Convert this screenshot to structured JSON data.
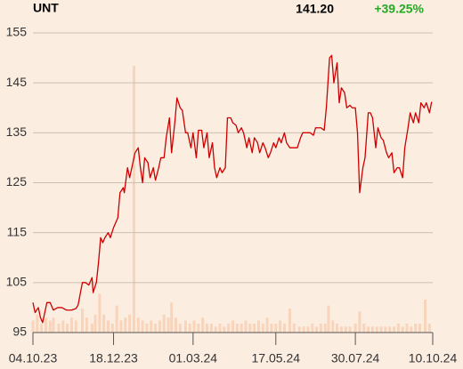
{
  "chart_data": {
    "type": "line",
    "title": "UNT",
    "last_price": "141.20",
    "change": "+39.25%",
    "xlim": [
      0,
      372
    ],
    "xticks": [
      {
        "value": 0,
        "label": "04.10.23"
      },
      {
        "value": 75,
        "label": "18.12.23"
      },
      {
        "value": 149,
        "label": "01.03.24"
      },
      {
        "value": 226,
        "label": "17.05.24"
      },
      {
        "value": 300,
        "label": "30.07.24"
      },
      {
        "value": 372,
        "label": "10.10.24"
      }
    ],
    "ylim": [
      95,
      155
    ],
    "yticks": [
      95,
      105,
      115,
      125,
      135,
      145,
      155
    ],
    "y2lim": [
      0,
      100
    ],
    "grid": true,
    "series": [
      {
        "color": "#cc0000",
        "x": [
          0,
          2,
          5,
          7,
          9,
          11,
          13,
          16,
          19,
          23,
          27,
          31,
          36,
          40,
          42,
          46,
          49,
          52,
          55,
          56,
          59,
          61,
          63,
          65,
          67,
          70,
          72,
          75,
          79,
          81,
          84,
          85,
          88,
          90,
          93,
          95,
          98,
          100,
          102,
          104,
          107,
          109,
          112,
          114,
          117,
          119,
          122,
          124,
          127,
          129,
          132,
          134,
          137,
          139,
          142,
          144,
          147,
          149,
          152,
          154,
          157,
          159,
          162,
          164,
          167,
          169,
          171,
          174,
          176,
          179,
          181,
          184,
          186,
          189,
          191,
          194,
          196,
          199,
          201,
          204,
          206,
          209,
          211,
          214,
          216,
          219,
          221,
          224,
          226,
          229,
          231,
          234,
          236,
          239,
          241,
          244,
          246,
          249,
          251,
          254,
          256,
          258,
          261,
          263,
          266,
          268,
          271,
          273,
          276,
          278,
          280,
          283,
          285,
          287,
          290,
          292,
          295,
          297,
          300,
          302,
          304,
          307,
          309,
          312,
          314,
          316,
          319,
          321,
          324,
          326,
          329,
          331,
          334,
          336,
          339,
          341,
          344,
          346,
          349,
          351,
          354,
          356,
          359,
          361,
          364,
          366,
          369,
          371
        ],
        "values": [
          101,
          99,
          100,
          98,
          97,
          99,
          101,
          101,
          99.5,
          100,
          100,
          99.5,
          99.5,
          99.8,
          100.5,
          105,
          105,
          104.5,
          106,
          103,
          105,
          109,
          114,
          113,
          114,
          115,
          114,
          116,
          118,
          123,
          124,
          123,
          128,
          126,
          129,
          131,
          132,
          128,
          125,
          130,
          129,
          126,
          128,
          125.5,
          128,
          130,
          130,
          134,
          138,
          131,
          137,
          142,
          140,
          139.5,
          135,
          135,
          132,
          135,
          130,
          135.5,
          135.5,
          132,
          135,
          130,
          133,
          128,
          126,
          128,
          127,
          128,
          138,
          138,
          137,
          136.5,
          135,
          136,
          135,
          132,
          134,
          131,
          134,
          133,
          131,
          133,
          132,
          130,
          131,
          133,
          132,
          134,
          133,
          135,
          133,
          132,
          132,
          132,
          132,
          134,
          135,
          135,
          135,
          135,
          134.5,
          136,
          136,
          136,
          135.5,
          140,
          150,
          150.5,
          145,
          149,
          141,
          144,
          143,
          140,
          140.5,
          140,
          140,
          135,
          123,
          128,
          130,
          139,
          139,
          138,
          132,
          136,
          134,
          133.5,
          131,
          130,
          131,
          127,
          128,
          128,
          126,
          132,
          136,
          139,
          137,
          139,
          137,
          141,
          140,
          141,
          139,
          141.2
        ]
      },
      {
        "color": "#f8d4bb",
        "axis": "y2",
        "type": "bar",
        "x": [
          0,
          4,
          8,
          12,
          16,
          19,
          24,
          28,
          32,
          36,
          40,
          46,
          50,
          55,
          58,
          62,
          66,
          70,
          74,
          78,
          82,
          86,
          90,
          94,
          98,
          102,
          106,
          110,
          114,
          118,
          122,
          126,
          129,
          133,
          137,
          142,
          146,
          150,
          154,
          158,
          162,
          166,
          170,
          174,
          178,
          182,
          186,
          190,
          194,
          198,
          202,
          206,
          210,
          214,
          218,
          222,
          226,
          230,
          234,
          239,
          243,
          248,
          252,
          256,
          260,
          264,
          268,
          272,
          275,
          279,
          283,
          287,
          291,
          295,
          300,
          304,
          308,
          312,
          316,
          320,
          324,
          328,
          332,
          336,
          340,
          344,
          348,
          352,
          356,
          360,
          365,
          369
        ],
        "values": [
          4,
          6,
          3,
          5,
          4,
          5,
          3,
          4,
          3,
          5,
          4,
          8,
          5,
          3,
          6,
          13,
          6,
          4,
          3,
          9,
          4,
          5,
          6,
          89,
          5,
          4,
          3,
          4,
          3,
          4,
          6,
          5,
          10,
          5,
          3,
          4,
          3,
          4,
          3,
          5,
          3,
          3,
          2,
          3,
          2,
          3,
          4,
          3,
          3,
          4,
          3,
          3,
          4,
          3,
          5,
          3,
          3,
          4,
          3,
          8,
          3,
          2,
          2,
          2,
          3,
          2,
          3,
          3,
          9,
          4,
          3,
          2,
          2,
          2,
          3,
          7,
          3,
          2,
          2,
          2,
          2,
          2,
          2,
          2,
          3,
          2,
          3,
          2,
          3,
          3,
          11,
          3
        ]
      }
    ]
  }
}
